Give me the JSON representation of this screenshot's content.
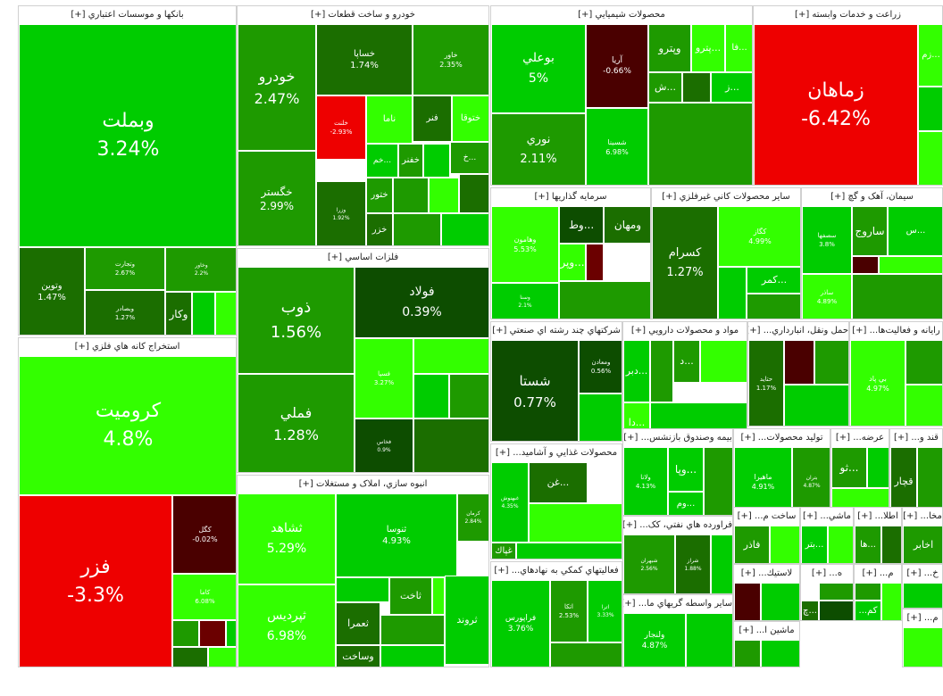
{
  "colors": {
    "strong_green": "#00cc00",
    "bright_green": "#33ff00",
    "mid_green": "#1e9a00",
    "dark_green": "#1b6e00",
    "deep_green": "#0d4d00",
    "red": "#ee0000",
    "dark_red": "#4a0000",
    "brown": "#6b0000"
  },
  "sectors": [
    {
      "title": "بانکها و موسسات اعتباري [+]",
      "tiles": [
        {
          "name": "وبملت",
          "pct": "3.24%"
        },
        {
          "name": "وتوين",
          "pct": "1.47%"
        },
        {
          "name": "وتجارت",
          "pct": "2.67%"
        },
        {
          "name": "وبصادر",
          "pct": "1.27%"
        },
        {
          "name": "وخاور",
          "pct": "2.2%"
        },
        {
          "name": "وكار",
          "pct": ""
        }
      ]
    },
    {
      "title": "استخراج کانه هاي فلزي [+]",
      "tiles": [
        {
          "name": "كروميت",
          "pct": "4.8%"
        },
        {
          "name": "فزر",
          "pct": "-3.3%"
        },
        {
          "name": "كگل",
          "pct": "-0.02%"
        },
        {
          "name": "كاما",
          "pct": "6.08%"
        }
      ]
    },
    {
      "title": "خودرو و ساخت قطعات [+]",
      "tiles": [
        {
          "name": "خودرو",
          "pct": "2.47%"
        },
        {
          "name": "خگستر",
          "pct": "2.99%"
        },
        {
          "name": "خساپا",
          "pct": "1.74%"
        },
        {
          "name": "خاور",
          "pct": "2.35%"
        },
        {
          "name": "خلنت",
          "pct": "-2.93%"
        },
        {
          "name": "ختوقا",
          "pct": ""
        },
        {
          "name": "فنر",
          "pct": ""
        },
        {
          "name": "ناما",
          "pct": ""
        },
        {
          "name": "خم...",
          "pct": ""
        },
        {
          "name": "خفنر",
          "pct": ""
        },
        {
          "name": "خ...",
          "pct": ""
        },
        {
          "name": "وزرا",
          "pct": "1.92%"
        },
        {
          "name": "ختور",
          "pct": ""
        },
        {
          "name": "خزر",
          "pct": ""
        }
      ]
    },
    {
      "title": "فلزات اساسي [+]",
      "tiles": [
        {
          "name": "ذوب",
          "pct": "1.56%"
        },
        {
          "name": "فولاد",
          "pct": "0.39%"
        },
        {
          "name": "فملي",
          "pct": "1.28%"
        },
        {
          "name": "فسپا",
          "pct": "3.27%"
        },
        {
          "name": "فخاس",
          "pct": "0.9%"
        }
      ]
    },
    {
      "title": "انبوه سازي، املاک و مستغلات [+]",
      "tiles": [
        {
          "name": "ثشاهد",
          "pct": "5.29%"
        },
        {
          "name": "ثپرديس",
          "pct": "6.98%"
        },
        {
          "name": "ثنوسا",
          "pct": "4.93%"
        },
        {
          "name": "كرمان",
          "pct": "2.84%"
        },
        {
          "name": "ثاخت",
          "pct": ""
        },
        {
          "name": "ثعمرا",
          "pct": ""
        },
        {
          "name": "ثروند",
          "pct": ""
        },
        {
          "name": "وساخت",
          "pct": ""
        }
      ]
    },
    {
      "title": "محصولات شيميايي [+]",
      "tiles": [
        {
          "name": "بوعلي",
          "pct": "5%"
        },
        {
          "name": "نوري",
          "pct": "2.11%"
        },
        {
          "name": "آريا",
          "pct": "-0.66%"
        },
        {
          "name": "شسينا",
          "pct": "6.98%"
        },
        {
          "name": "وپترو",
          "pct": ""
        },
        {
          "name": "پترو...",
          "pct": ""
        },
        {
          "name": "فا...",
          "pct": ""
        },
        {
          "name": "ش...",
          "pct": ""
        },
        {
          "name": "ز...",
          "pct": ""
        }
      ]
    },
    {
      "title": "زراعت و خدمات وابسته [+]",
      "tiles": [
        {
          "name": "زماهان",
          "pct": "-6.42%"
        },
        {
          "name": "زم...",
          "pct": ""
        }
      ]
    },
    {
      "title": "سرمايه گذاريها [+]",
      "tiles": [
        {
          "name": "وهامون",
          "pct": "5.53%"
        },
        {
          "name": "ومهان",
          "pct": ""
        },
        {
          "name": "وط...",
          "pct": ""
        },
        {
          "name": "وپر...",
          "pct": ""
        },
        {
          "name": "وسنا",
          "pct": "2.1%"
        }
      ]
    },
    {
      "title": "ساير محصولات کاني غيرفلزي [+]",
      "tiles": [
        {
          "name": "كسرام",
          "pct": "1.27%"
        },
        {
          "name": "كگاز",
          "pct": "4.99%"
        },
        {
          "name": "كمر...",
          "pct": ""
        }
      ]
    },
    {
      "title": "سيمان، آهک و گچ [+]",
      "tiles": [
        {
          "name": "سصفها",
          "pct": "3.8%"
        },
        {
          "name": "ساروج",
          "pct": ""
        },
        {
          "name": "س...",
          "pct": ""
        },
        {
          "name": "ساذر",
          "pct": "4.89%"
        }
      ]
    },
    {
      "title": "شرکتهاي چند رشته اي صنعتي [+]",
      "tiles": [
        {
          "name": "شستا",
          "pct": "0.77%"
        },
        {
          "name": "ومعادن",
          "pct": "0.56%"
        }
      ]
    },
    {
      "title": "مواد و محصولات دارويي [+]",
      "tiles": [
        {
          "name": "دبر...",
          "pct": ""
        },
        {
          "name": "د...",
          "pct": ""
        },
        {
          "name": "دا...",
          "pct": ""
        }
      ]
    },
    {
      "title": "حمل ونقل، انبارداري... [+]",
      "tiles": [
        {
          "name": "حتايد",
          "pct": "1.17%"
        }
      ]
    },
    {
      "title": "رايانه و فعاليت‌ها... [+]",
      "tiles": [
        {
          "name": "بي پاد",
          "pct": "4.97%"
        }
      ]
    },
    {
      "title": "محصولات غذايي و آشاميد... [+]",
      "tiles": [
        {
          "name": "غبهنوش",
          "pct": "4.35%"
        },
        {
          "name": "غن...",
          "pct": ""
        },
        {
          "name": "غپاك",
          "pct": ""
        }
      ]
    },
    {
      "title": "بيمه وصندوق بازنشس... [+]",
      "tiles": [
        {
          "name": "ولانا",
          "pct": "4.13%"
        },
        {
          "name": "وپا...",
          "pct": ""
        },
        {
          "name": "وم...",
          "pct": ""
        }
      ]
    },
    {
      "title": "توليد محصولات... [+]",
      "tiles": [
        {
          "name": "ماهيرا",
          "pct": "4.91%"
        },
        {
          "name": "بتران",
          "pct": "4.87%"
        }
      ]
    },
    {
      "title": "عرضه... [+]",
      "tiles": [
        {
          "name": "ثو...",
          "pct": ""
        }
      ]
    },
    {
      "title": "قند و... [+]",
      "tiles": [
        {
          "name": "قچار",
          "pct": ""
        }
      ]
    },
    {
      "title": "فعاليتهاي کمکي به نهادهاي... [+]",
      "tiles": [
        {
          "name": "فراپورس",
          "pct": "3.76%"
        },
        {
          "name": "اتكا",
          "pct": "2.53%"
        },
        {
          "name": "اترا",
          "pct": "3.33%"
        }
      ]
    },
    {
      "title": "فراورده هاي نفتي، کک... [+]",
      "tiles": [
        {
          "name": "شبهران",
          "pct": "2.56%"
        },
        {
          "name": "شراز",
          "pct": "1.88%"
        }
      ]
    },
    {
      "title": "ساير واسطه گريهاي ما... [+]",
      "tiles": [
        {
          "name": "ولنجار",
          "pct": "4.87%"
        }
      ]
    },
    {
      "title": "ساخت م... [+]",
      "tiles": [
        {
          "name": "فاذر",
          "pct": ""
        }
      ]
    },
    {
      "title": "ماشي... [+]",
      "tiles": [
        {
          "name": "بتر...",
          "pct": ""
        }
      ]
    },
    {
      "title": "اطلا... [+]",
      "tiles": [
        {
          "name": "ها...",
          "pct": ""
        }
      ]
    },
    {
      "title": "مخا... [+]",
      "tiles": [
        {
          "name": "اخابر",
          "pct": ""
        }
      ]
    },
    {
      "title": "لاستيك... [+]",
      "tiles": []
    },
    {
      "title": "ماشين ا... [+]",
      "tiles": []
    },
    {
      "title": "ه... [+]",
      "tiles": [
        {
          "name": "چ...",
          "pct": ""
        }
      ]
    },
    {
      "title": "م... [+]",
      "tiles": [
        {
          "name": "...كم",
          "pct": ""
        }
      ]
    },
    {
      "title": "خ... [+]",
      "tiles": []
    },
    {
      "title": "م... [+]",
      "tiles": []
    }
  ]
}
